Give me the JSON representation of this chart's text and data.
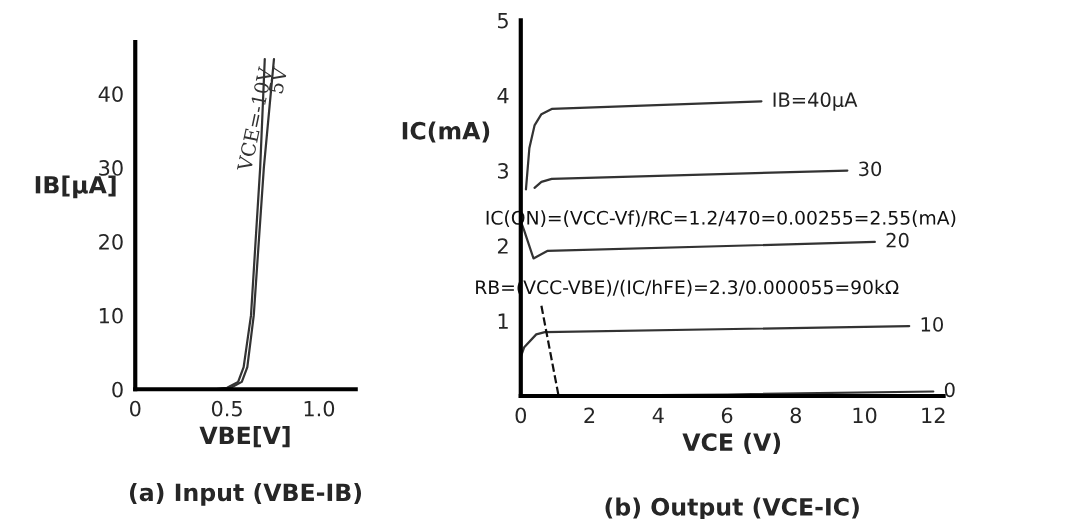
{
  "chart_data": [
    {
      "type": "line",
      "xlabel": "VBE[V]",
      "ylabel": "IB[μA]",
      "xlim": [
        0,
        1.2
      ],
      "ylim": [
        0,
        47
      ],
      "xticks": [
        0,
        0.5,
        {
          "value": 1.0,
          "label": "1.0"
        }
      ],
      "yticks": [
        0,
        10,
        20,
        30,
        40
      ],
      "grid": false,
      "legend": false,
      "annotations": [
        "(a) Input (VBE-IB)"
      ],
      "series": [
        {
          "name": "VCE=-10V",
          "color": "#333333",
          "x": [
            0.43,
            0.5,
            0.56,
            0.59,
            0.63,
            0.68,
            0.705
          ],
          "values": [
            0,
            0.2,
            1,
            3,
            10,
            30,
            44.7
          ]
        },
        {
          "name": "5V",
          "color": "#333333",
          "x": [
            0.45,
            0.52,
            0.58,
            0.61,
            0.645,
            0.7,
            0.755
          ],
          "values": [
            0,
            0.2,
            1,
            3,
            10,
            30,
            44.7
          ]
        }
      ]
    },
    {
      "type": "line",
      "xlabel": "VCE (V)",
      "ylabel": "IC(mA)",
      "xlim": [
        0,
        12.3
      ],
      "ylim": [
        0,
        5
      ],
      "xticks": [
        0,
        2,
        4,
        6,
        8,
        10,
        12
      ],
      "yticks": [
        1,
        2,
        3,
        4,
        5
      ],
      "grid": false,
      "legend": false,
      "annotations": [
        "IC(ON)=(VCC-Vf)/RC=1.2/470=0.00255=2.55(mA)",
        "RB=(VCC-VBE)/(IC/hFE)=2.3/0.000055=90kΩ",
        "(b) Output (VCE-IC)"
      ],
      "series": [
        {
          "name": "IB=40μA",
          "color": "#333333",
          "x": [
            0.15,
            0.25,
            0.4,
            0.6,
            0.9,
            7.0
          ],
          "values": [
            2.75,
            3.3,
            3.6,
            3.75,
            3.82,
            3.92
          ]
        },
        {
          "name": "30",
          "color": "#333333",
          "x": [
            0.4,
            0.6,
            0.9,
            9.5
          ],
          "values": [
            2.77,
            2.85,
            2.89,
            3.0
          ]
        },
        {
          "name": "20",
          "color": "#333333",
          "x": [
            0.02,
            0.1,
            0.37,
            0.77,
            10.3
          ],
          "values": [
            2.3,
            2.2,
            1.83,
            1.93,
            2.05
          ]
        },
        {
          "name": "10",
          "color": "#333333",
          "x": [
            0,
            0.1,
            0.45,
            0.7,
            11.3
          ],
          "values": [
            0.52,
            0.65,
            0.82,
            0.85,
            0.93
          ]
        },
        {
          "name": "0",
          "color": "#333333",
          "x": [
            0,
            6,
            12
          ],
          "values": [
            0,
            0.02,
            0.06
          ]
        },
        {
          "color": "#111111",
          "line_style": "dashed",
          "x": [
            0.6,
            1.1
          ],
          "values": [
            1.2,
            0
          ]
        }
      ]
    }
  ]
}
